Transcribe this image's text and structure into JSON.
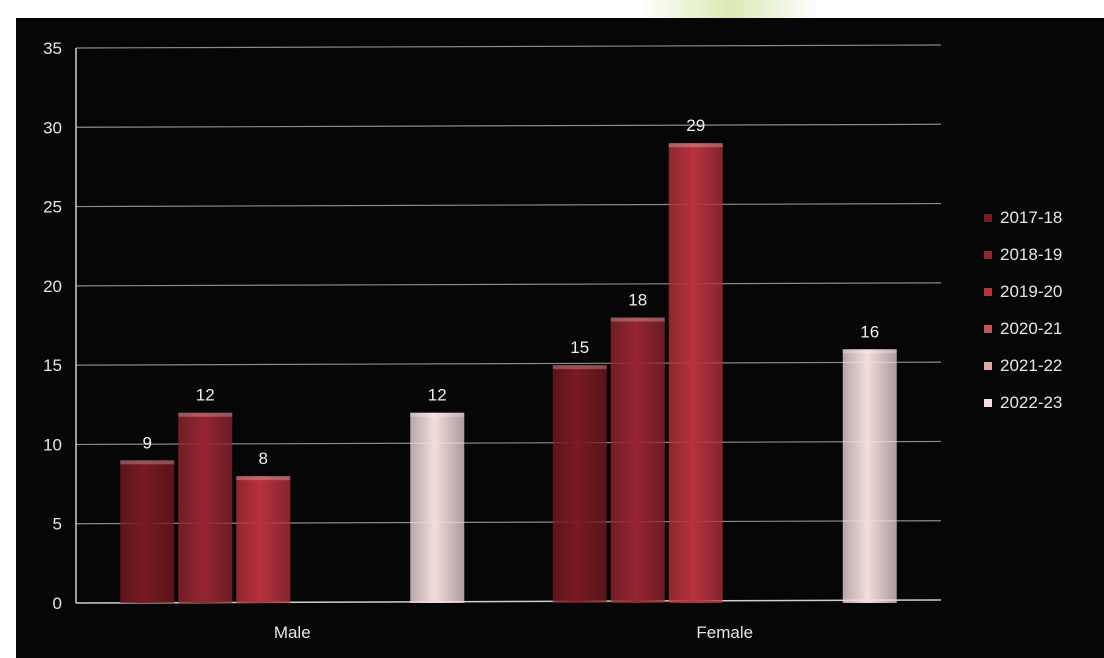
{
  "chart_data": {
    "type": "bar",
    "categories": [
      "Male",
      "Female"
    ],
    "series": [
      {
        "name": "2017-18",
        "values": [
          9,
          15
        ],
        "color": "#7a1a22"
      },
      {
        "name": "2018-19",
        "values": [
          12,
          18
        ],
        "color": "#962530"
      },
      {
        "name": "2019-20",
        "values": [
          8,
          29
        ],
        "color": "#b8323c"
      },
      {
        "name": "2020-21",
        "values": [
          null,
          null
        ],
        "color": "#c4525a"
      },
      {
        "name": "2021-22",
        "values": [
          null,
          null
        ],
        "color": "#d9a7a7"
      },
      {
        "name": "2022-23",
        "values": [
          12,
          16
        ],
        "color": "#f3dcdc"
      }
    ],
    "ylim": [
      0,
      35
    ],
    "yticks": [
      0,
      5,
      10,
      15,
      20,
      25,
      30,
      35
    ],
    "title": "",
    "xlabel": "",
    "ylabel": "",
    "grid": true,
    "legend_position": "right",
    "background": "#060606",
    "gridline_color": "#8a8a8a",
    "text_color": "#e6e6e6"
  }
}
